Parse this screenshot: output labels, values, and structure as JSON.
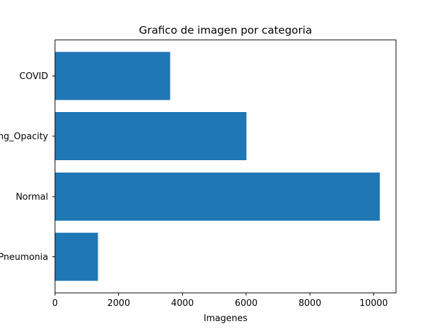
{
  "chart_data": {
    "type": "bar",
    "orientation": "horizontal",
    "title": "Grafico de imagen por categoria",
    "xlabel": "Imagenes",
    "ylabel": "",
    "categories": [
      "COVID",
      "Lung_Opacity",
      "Normal",
      "Viral Pneumonia"
    ],
    "values": [
      3616,
      6012,
      10192,
      1345
    ],
    "xlim": [
      0,
      10701
    ],
    "xticks": [
      0,
      2000,
      4000,
      6000,
      8000,
      10000
    ],
    "bar_color": "#1f77b4",
    "grid": false,
    "legend": "none"
  }
}
